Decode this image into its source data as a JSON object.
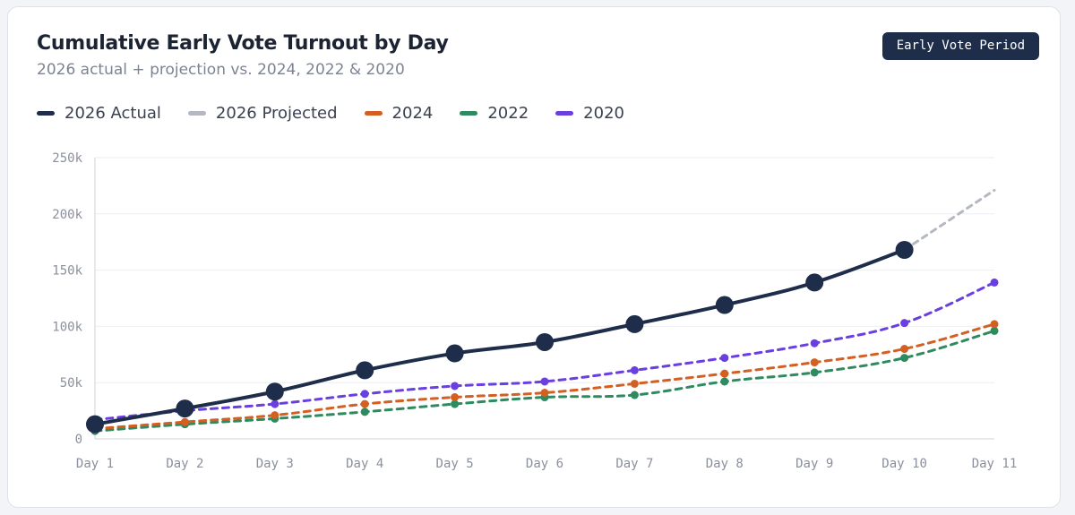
{
  "header": {
    "title": "Cumulative Early Vote Turnout by Day",
    "subtitle": "2026 actual + projection vs. 2024, 2022 & 2020",
    "badge": "Early Vote Period"
  },
  "chart_data": {
    "type": "line",
    "title": "Cumulative Early Vote Turnout by Day",
    "subtitle": "2026 actual + projection vs. 2024, 2022 & 2020",
    "xlabel": "",
    "ylabel": "",
    "categories": [
      "Day 1",
      "Day 2",
      "Day 3",
      "Day 4",
      "Day 5",
      "Day 6",
      "Day 7",
      "Day 8",
      "Day 9",
      "Day 10",
      "Day 11"
    ],
    "ylim": [
      0,
      250000
    ],
    "yticks": [
      0,
      50000,
      100000,
      150000,
      200000,
      250000
    ],
    "ytick_labels": [
      "0",
      "50k",
      "100k",
      "150k",
      "200k",
      "250k"
    ],
    "grid": true,
    "legend_position": "top-left",
    "series": [
      {
        "name": "2026 Actual",
        "color": "#1e2d4a",
        "style": "solid",
        "values": [
          13000,
          27000,
          42000,
          61000,
          76000,
          86000,
          102000,
          119000,
          139000,
          168000,
          null
        ]
      },
      {
        "name": "2026 Projected",
        "color": "#b4b8c0",
        "style": "dashed",
        "values": [
          null,
          null,
          null,
          null,
          null,
          null,
          null,
          null,
          null,
          168000,
          221000
        ]
      },
      {
        "name": "2024",
        "color": "#d35f22",
        "style": "dashed",
        "values": [
          9000,
          15000,
          21000,
          31000,
          37000,
          41000,
          49000,
          58000,
          68000,
          80000,
          102000
        ]
      },
      {
        "name": "2022",
        "color": "#2e8a5f",
        "style": "dashed",
        "values": [
          7000,
          13000,
          18000,
          24000,
          31000,
          37000,
          39000,
          51000,
          59000,
          72000,
          96000
        ]
      },
      {
        "name": "2020",
        "color": "#6a3fe0",
        "style": "dashed",
        "values": [
          17000,
          25000,
          31000,
          40000,
          47000,
          51000,
          61000,
          72000,
          85000,
          103000,
          139000
        ]
      }
    ]
  }
}
